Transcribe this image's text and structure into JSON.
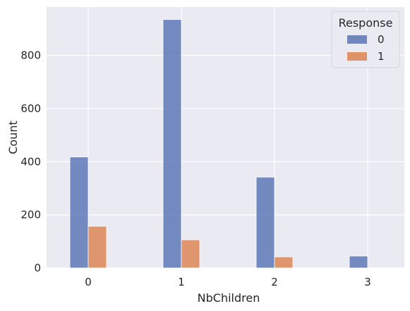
{
  "chart_data": {
    "type": "bar",
    "xlabel": "NbChildren",
    "ylabel": "Count",
    "categories": [
      "0",
      "1",
      "2",
      "3"
    ],
    "series": [
      {
        "name": "0",
        "color": "#5975b5",
        "values": [
          418,
          935,
          342,
          45
        ]
      },
      {
        "name": "1",
        "color": "#dd8452",
        "values": [
          157,
          106,
          42,
          0
        ]
      }
    ],
    "ylim": [
      0,
      982
    ],
    "yticks": [
      0,
      200,
      400,
      600,
      800
    ],
    "grid": true,
    "legend": {
      "title": "Response",
      "placement": "top-right"
    }
  }
}
